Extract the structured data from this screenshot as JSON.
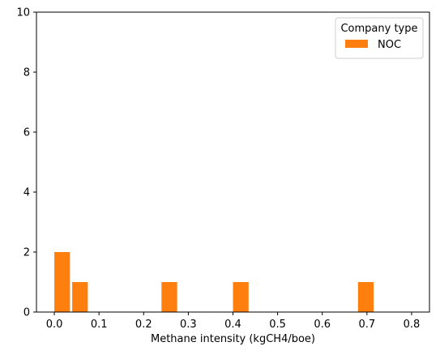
{
  "chart_data": {
    "type": "bar",
    "title": "",
    "xlabel": "Methane intensity (kgCH4/boe)",
    "ylabel": "",
    "xlim": [
      -0.04,
      0.84
    ],
    "ylim": [
      0,
      10
    ],
    "xticks": [
      0.0,
      0.1,
      0.2,
      0.3,
      0.4,
      0.5,
      0.6,
      0.7,
      0.8
    ],
    "xtick_labels": [
      "0.0",
      "0.1",
      "0.2",
      "0.3",
      "0.4",
      "0.5",
      "0.6",
      "0.7",
      "0.8"
    ],
    "yticks": [
      0,
      2,
      4,
      6,
      8,
      10
    ],
    "ytick_labels": [
      "0",
      "2",
      "4",
      "6",
      "8",
      "10"
    ],
    "grid": false,
    "legend": {
      "title": "Company type",
      "placement": "top-right",
      "entries": [
        {
          "name": "NOC",
          "color": "#ff7f0e"
        }
      ]
    },
    "series": [
      {
        "name": "NOC",
        "color": "#ff7f0e",
        "bins": [
          {
            "x0": 0.0,
            "x1": 0.035,
            "value": 2
          },
          {
            "x0": 0.04,
            "x1": 0.075,
            "value": 1
          },
          {
            "x0": 0.24,
            "x1": 0.275,
            "value": 1
          },
          {
            "x0": 0.4,
            "x1": 0.435,
            "value": 1
          },
          {
            "x0": 0.68,
            "x1": 0.715,
            "value": 1
          }
        ]
      }
    ]
  }
}
